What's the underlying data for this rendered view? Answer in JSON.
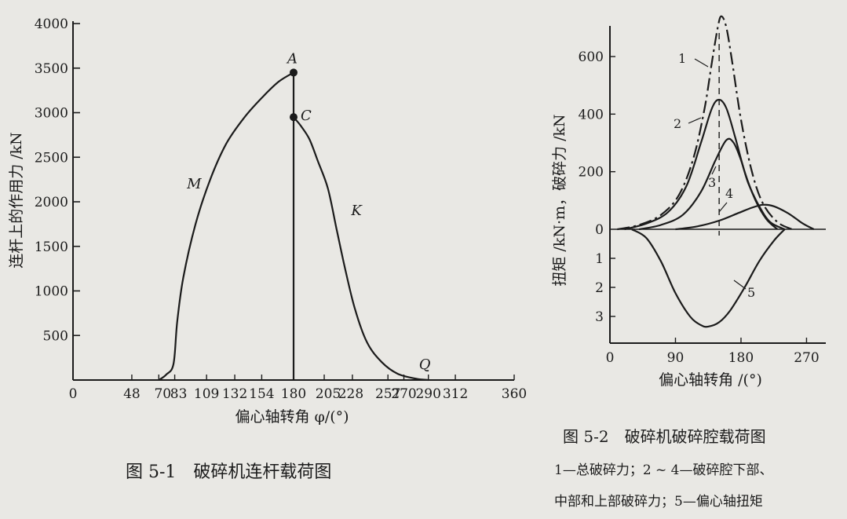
{
  "chart_data": [
    {
      "type": "line",
      "caption": "图 5-1　破碎机连杆载荷图",
      "xlabel": "偏心轴转角 φ/(°)",
      "ylabel": "连杆上的作用力 /kN",
      "xlim": [
        0,
        360
      ],
      "ylim": [
        0,
        4000
      ],
      "x_ticks": [
        "0",
        "48",
        "70",
        "83",
        "109",
        "132",
        "154",
        "180",
        "205",
        "228",
        "257",
        "270",
        "290",
        "312",
        "360"
      ],
      "y_ticks": [
        "500",
        "1000",
        "1500",
        "2000",
        "2500",
        "3000",
        "3500",
        "4000"
      ],
      "series": [
        {
          "name": "M",
          "x": [
            70,
            76,
            82,
            85,
            90,
            100,
            112,
            125,
            140,
            155,
            168,
            180
          ],
          "y": [
            0,
            60,
            180,
            650,
            1150,
            1750,
            2250,
            2650,
            2950,
            3180,
            3350,
            3450
          ]
        },
        {
          "name": "K",
          "x": [
            180,
            186,
            193,
            200,
            208,
            215,
            222,
            230,
            240,
            252,
            265,
            280,
            290
          ],
          "y": [
            2950,
            2850,
            2700,
            2450,
            2150,
            1700,
            1250,
            800,
            420,
            200,
            70,
            15,
            0
          ]
        },
        {
          "name": "",
          "x": [
            180,
            180
          ],
          "y": [
            0,
            3450
          ]
        }
      ],
      "points": [
        {
          "label": "A",
          "x": 180,
          "y": 3450
        },
        {
          "label": "C",
          "x": 180,
          "y": 2950
        }
      ],
      "annotations": [
        {
          "label": "Q",
          "x": 290,
          "y": 0
        }
      ],
      "grid": false,
      "legend": "none"
    },
    {
      "type": "line",
      "caption": "图 5-2　破碎机破碎腔载荷图",
      "legend_text": [
        "1—总破碎力；2 ~ 4—破碎腔下部、",
        "中部和上部破碎力；5—偏心轴扭矩"
      ],
      "xlabel": "偏心轴转角 /(°)",
      "ylabel": "扭矩 /kN·m，破碎力 /kN",
      "xlim": [
        0,
        290
      ],
      "ylim_force": [
        0,
        700
      ],
      "ylim_torque": [
        0,
        3.6
      ],
      "x_ticks": [
        "0",
        "90",
        "180",
        "270"
      ],
      "y_ticks_force": [
        "0",
        "200",
        "400",
        "600"
      ],
      "y_ticks_torque": [
        "1",
        "2",
        "3"
      ],
      "dashed_line_x": 150,
      "series": [
        {
          "name": "1",
          "x": [
            10,
            40,
            70,
            95,
            115,
            130,
            140,
            148,
            153,
            160,
            168,
            180,
            195,
            210,
            230,
            250
          ],
          "y": [
            0,
            15,
            50,
            120,
            250,
            420,
            580,
            700,
            740,
            700,
            580,
            380,
            200,
            90,
            25,
            0
          ]
        },
        {
          "name": "2",
          "x": [
            20,
            50,
            80,
            105,
            125,
            140,
            150,
            160,
            172,
            185,
            200,
            215,
            230
          ],
          "y": [
            0,
            20,
            60,
            150,
            300,
            420,
            450,
            420,
            320,
            200,
            100,
            35,
            0
          ]
        },
        {
          "name": "3",
          "x": [
            40,
            70,
            100,
            125,
            145,
            160,
            170,
            180,
            190,
            205,
            220,
            240
          ],
          "y": [
            0,
            15,
            50,
            130,
            240,
            310,
            300,
            240,
            160,
            80,
            25,
            0
          ]
        },
        {
          "name": "4",
          "x": [
            90,
            120,
            150,
            175,
            195,
            210,
            225,
            245,
            265,
            280
          ],
          "y": [
            0,
            10,
            30,
            55,
            75,
            85,
            80,
            55,
            20,
            0
          ]
        },
        {
          "name": "5",
          "x": [
            30,
            50,
            70,
            90,
            110,
            125,
            135,
            150,
            165,
            185,
            205,
            225,
            240
          ],
          "y": [
            0,
            0.3,
            1.1,
            2.2,
            3.0,
            3.3,
            3.35,
            3.2,
            2.8,
            2.0,
            1.1,
            0.4,
            0
          ]
        }
      ],
      "grid": false
    }
  ]
}
